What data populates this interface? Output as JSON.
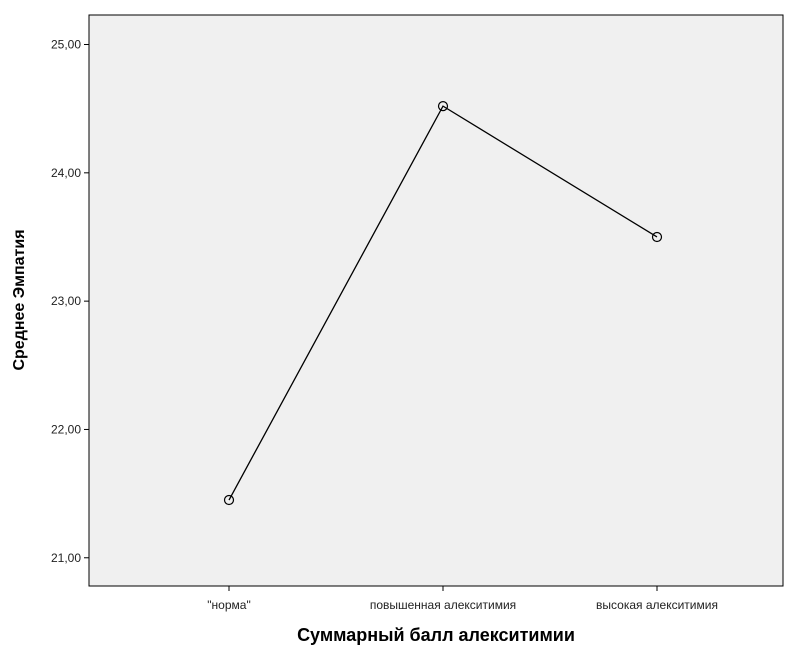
{
  "chart_data": {
    "type": "line",
    "title": "",
    "xlabel": "Суммарный балл алекситимии",
    "ylabel": "Среднее Эмпатия",
    "categories": [
      "\"норма\"",
      "повышенная алекситимия",
      "высокая алекситимия"
    ],
    "values": [
      21.45,
      24.52,
      23.5
    ],
    "ylim": [
      20.78,
      25.23
    ],
    "yticks": [
      "21,00",
      "22,00",
      "23,00",
      "24,00",
      "25,00"
    ],
    "ytick_values": [
      21,
      22,
      23,
      24,
      25
    ],
    "grid": false,
    "plot_background": "#f0f0f0",
    "line_color": "#000000",
    "marker": "open-circle"
  }
}
